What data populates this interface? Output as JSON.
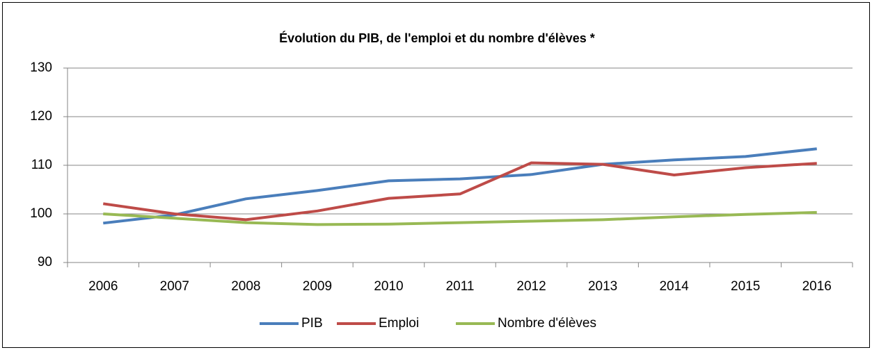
{
  "chart_data": {
    "type": "line",
    "title": "Évolution du PIB, de l'emploi et du nombre d'élèves *",
    "categories": [
      "2006",
      "2007",
      "2008",
      "2009",
      "2010",
      "2011",
      "2012",
      "2013",
      "2014",
      "2015",
      "2016"
    ],
    "series": [
      {
        "name": "PIB",
        "color": "#4a7ebb",
        "values": [
          98.1,
          99.8,
          103.1,
          104.8,
          106.8,
          107.2,
          108.1,
          110.2,
          111.1,
          111.8,
          113.4
        ]
      },
      {
        "name": "Emploi",
        "color": "#be4b48",
        "values": [
          102.1,
          100.0,
          98.8,
          100.6,
          103.2,
          104.1,
          110.5,
          110.2,
          108.0,
          109.5,
          110.4
        ]
      },
      {
        "name": "Nombre d'élèves",
        "color": "#98b954",
        "values": [
          100.0,
          99.1,
          98.2,
          97.8,
          97.9,
          98.2,
          98.5,
          98.8,
          99.4,
          99.9,
          100.3
        ]
      }
    ],
    "ylim": [
      90,
      130
    ],
    "yticks": [
      90,
      100,
      110,
      120,
      130
    ],
    "grid": true,
    "legend": "bottom"
  }
}
